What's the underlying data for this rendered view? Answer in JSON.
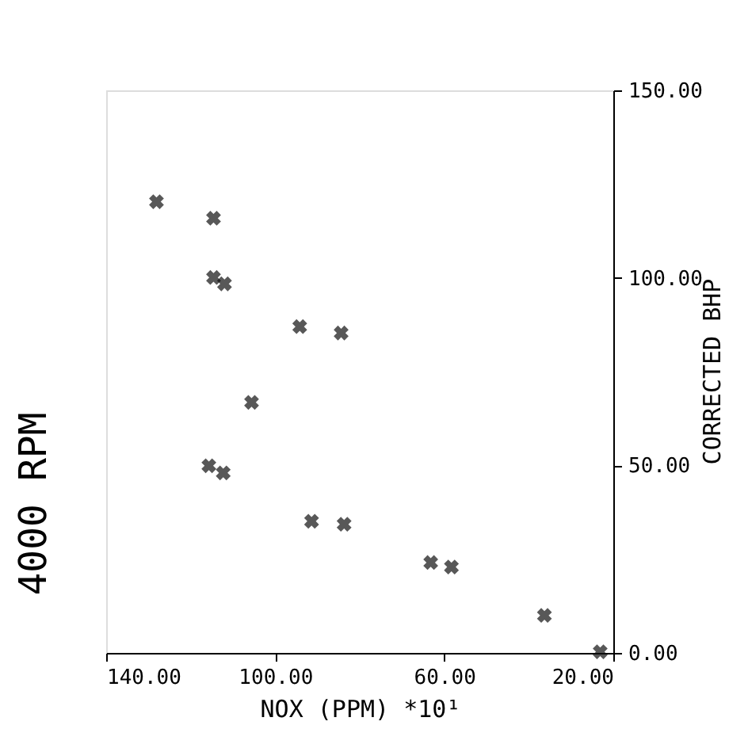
{
  "chart_data": {
    "type": "scatter",
    "title": "4000 RPM",
    "xlabel": "NOX (PPM) *10¹",
    "ylabel": "CORRECTED BHP",
    "x": [
      128.1,
      114.6,
      114.6,
      112.0,
      94.2,
      84.4,
      105.6,
      115.7,
      112.3,
      91.4,
      83.7,
      63.2,
      58.3,
      36.3,
      23.1
    ],
    "series": [
      {
        "color": "#111111",
        "values": [
          120.3,
          115.9,
          100.1,
          98.4,
          87.0,
          85.3,
          66.8,
          49.9,
          48.0,
          35.1,
          34.3,
          24.1,
          22.9,
          10.0,
          0.3
        ]
      }
    ],
    "xlim": [
      140,
      20
    ],
    "xticks": [
      {
        "value": 20,
        "label": "20.00"
      },
      {
        "value": 60,
        "label": "60.00"
      },
      {
        "value": 100,
        "label": "100.00"
      },
      {
        "value": 140,
        "label": "140.00"
      }
    ],
    "ylim": [
      0,
      150
    ],
    "yticks": [
      {
        "value": 0,
        "label": "0.00"
      },
      {
        "value": 50,
        "label": "50.00"
      },
      {
        "value": 100,
        "label": "100.00"
      },
      {
        "value": 150,
        "label": "150.00"
      }
    ],
    "marker": "cross",
    "grid": false,
    "legend": false
  }
}
